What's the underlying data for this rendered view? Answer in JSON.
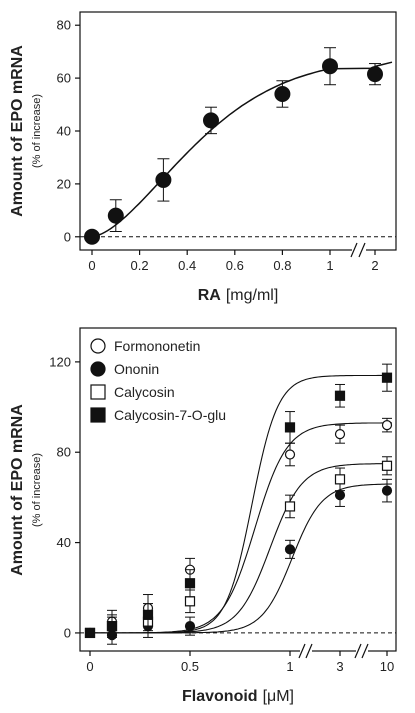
{
  "chart_data": [
    {
      "type": "scatter",
      "title": "",
      "xlabel_main": "RA",
      "xlabel_unit": "[mg/ml]",
      "ylabel_main": "Amount of EPO mRNA",
      "ylabel_sub": "(% of increase)",
      "xtick_labels": [
        "0",
        "0.2",
        "0.4",
        "0.6",
        "0.8",
        "1",
        "2"
      ],
      "ytick_labels": [
        "0",
        "20",
        "40",
        "60",
        "80"
      ],
      "ylim": [
        -5,
        85
      ],
      "x_axis_break_between": [
        "1",
        "2"
      ],
      "baseline_dashed_at_y": 0,
      "fitted_curve": true,
      "series": [
        {
          "marker": "filled-circle",
          "x": [
            0,
            0.1,
            0.3,
            0.5,
            0.8,
            1,
            2
          ],
          "y": [
            0,
            8,
            21.5,
            44,
            54,
            64.5,
            61.5
          ],
          "error": [
            0,
            6,
            8,
            5,
            5,
            7,
            4
          ]
        }
      ]
    },
    {
      "type": "scatter",
      "title": "",
      "xlabel_main": "Flavonoid",
      "xlabel_unit": "[μM]",
      "ylabel_main": "Amount of EPO mRNA",
      "ylabel_sub": "(% of increase)",
      "xtick_labels": [
        "0",
        "0.5",
        "1",
        "3",
        "10"
      ],
      "ytick_labels": [
        "0",
        "40",
        "80",
        "120"
      ],
      "ylim": [
        -8,
        135
      ],
      "x_axis_breaks": [
        "1-3",
        "3-10"
      ],
      "baseline_dashed_at_y": 0,
      "fitted_curve": true,
      "legend_position": "top-left",
      "series": [
        {
          "name": "Formononetin",
          "marker": "open-circle",
          "x": [
            0,
            0.1,
            0.3,
            0.5,
            1,
            3,
            10
          ],
          "y": [
            0,
            5,
            11,
            28,
            79,
            88,
            92
          ],
          "error": [
            0,
            5,
            6,
            5,
            5,
            4,
            3
          ]
        },
        {
          "name": "Ononin",
          "marker": "filled-circle",
          "x": [
            0,
            0.1,
            0.3,
            0.5,
            1,
            3,
            10
          ],
          "y": [
            0,
            -1,
            3,
            3,
            37,
            61,
            63
          ],
          "error": [
            0,
            4,
            5,
            4,
            4,
            5,
            5
          ]
        },
        {
          "name": "Calycosin",
          "marker": "open-square",
          "x": [
            0,
            0.1,
            0.3,
            0.5,
            1,
            3,
            10
          ],
          "y": [
            0,
            3,
            5,
            14,
            56,
            68,
            74
          ],
          "error": [
            0,
            4,
            4,
            5,
            5,
            5,
            4
          ]
        },
        {
          "name": "Calycosin-7-O-glu",
          "marker": "filled-square",
          "x": [
            0,
            0.1,
            0.3,
            0.5,
            1,
            3,
            10
          ],
          "y": [
            0,
            3,
            8,
            22,
            91,
            105,
            113
          ],
          "error": [
            0,
            5,
            5,
            6,
            7,
            5,
            6
          ]
        }
      ]
    }
  ]
}
